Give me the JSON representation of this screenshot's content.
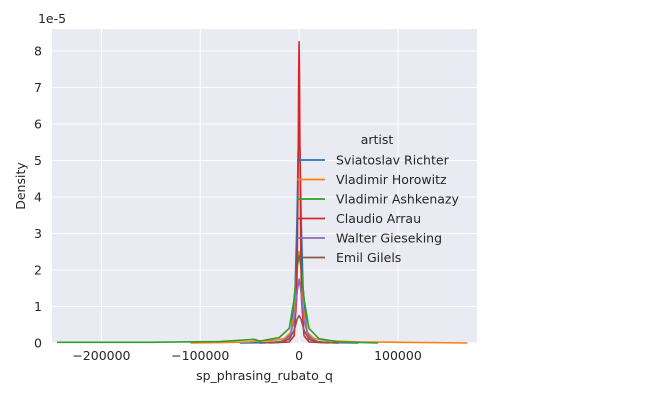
{
  "chart_data": {
    "type": "line",
    "title": "",
    "xlabel": "sp_phrasing_rubato_q",
    "ylabel": "Density",
    "y_offset_label": "1e-5",
    "xlim": [
      -250000,
      180000
    ],
    "ylim": [
      0,
      8.6
    ],
    "y_unit_scale": 1e-05,
    "x_ticks": [
      -200000,
      -100000,
      0,
      100000
    ],
    "x_tick_labels": [
      "−200000",
      "−100000",
      "0",
      "100000"
    ],
    "y_ticks": [
      0,
      1,
      2,
      3,
      4,
      5,
      6,
      7,
      8
    ],
    "y_tick_labels": [
      "0",
      "1",
      "2",
      "3",
      "4",
      "5",
      "6",
      "7",
      "8"
    ],
    "grid": true,
    "background": "#eaeaf2",
    "legend": {
      "title": "artist",
      "placement": "center-right"
    },
    "series": [
      {
        "name": "Sviatoslav Richter",
        "color": "#1f77b4",
        "x": [
          -60000,
          -30000,
          -15000,
          -8000,
          -4000,
          -2000,
          -1000,
          0,
          1000,
          2000,
          4000,
          8000,
          15000,
          30000,
          60000
        ],
        "y": [
          0,
          0.01,
          0.05,
          0.3,
          1.5,
          3.5,
          5.2,
          5.85,
          5.2,
          3.5,
          1.5,
          0.3,
          0.05,
          0.01,
          0
        ]
      },
      {
        "name": "Vladimir Horowitz",
        "color": "#ff7f0e",
        "x": [
          -110000,
          -80000,
          -50000,
          -45000,
          -30000,
          -15000,
          -8000,
          -4000,
          -2000,
          0,
          2000,
          4000,
          8000,
          15000,
          30000,
          60000,
          100000,
          140000,
          170000
        ],
        "y": [
          0,
          0.01,
          0.03,
          0.05,
          0.06,
          0.12,
          0.3,
          1.0,
          2.0,
          2.5,
          2.0,
          1.0,
          0.3,
          0.12,
          0.06,
          0.03,
          0.02,
          0.01,
          0
        ]
      },
      {
        "name": "Vladimir Ashkenazy",
        "color": "#2ca02c",
        "x": [
          -245000,
          -200000,
          -150000,
          -120000,
          -80000,
          -45000,
          -40000,
          -20000,
          -10000,
          -5000,
          -2500,
          0,
          2500,
          5000,
          10000,
          20000,
          40000,
          80000
        ],
        "y": [
          0.02,
          0.02,
          0.02,
          0.03,
          0.04,
          0.1,
          0.05,
          0.15,
          0.4,
          1.2,
          2.0,
          2.4,
          2.0,
          1.2,
          0.4,
          0.12,
          0.03,
          0
        ]
      },
      {
        "name": "Claudio Arrau",
        "color": "#d62728",
        "x": [
          -30000,
          -10000,
          -5000,
          -2500,
          -1500,
          -800,
          -400,
          0,
          400,
          800,
          1500,
          2500,
          5000,
          10000,
          30000
        ],
        "y": [
          0,
          0.03,
          0.2,
          1.2,
          3.0,
          5.5,
          7.4,
          8.25,
          7.4,
          5.5,
          3.0,
          1.2,
          0.2,
          0.03,
          0
        ]
      },
      {
        "name": "Walter Gieseking",
        "color": "#9467bd",
        "x": [
          -40000,
          -20000,
          -10000,
          -5000,
          -2000,
          0,
          2000,
          5000,
          10000,
          20000,
          40000
        ],
        "y": [
          0,
          0.02,
          0.15,
          0.6,
          1.4,
          1.75,
          1.4,
          0.6,
          0.15,
          0.02,
          0
        ]
      },
      {
        "name": "Emil Gilels",
        "color": "#8c564b",
        "x": [
          -40000,
          -20000,
          -10000,
          -5000,
          -2000,
          0,
          2000,
          5000,
          10000,
          20000,
          40000
        ],
        "y": [
          0,
          0.02,
          0.1,
          0.35,
          0.65,
          0.75,
          0.65,
          0.35,
          0.1,
          0.02,
          0
        ]
      }
    ]
  }
}
